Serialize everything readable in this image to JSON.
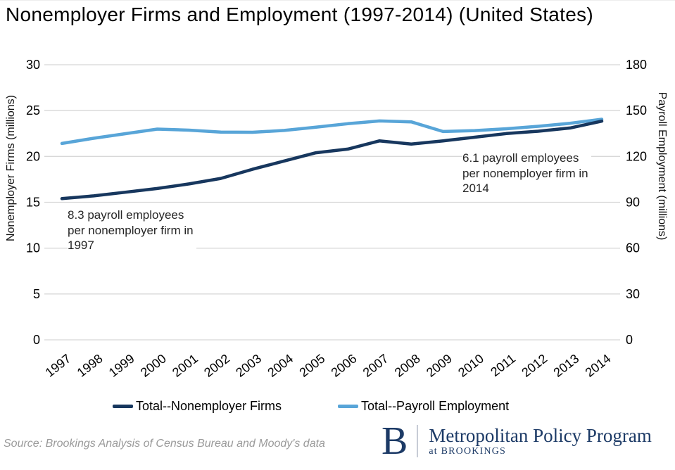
{
  "header": {
    "title": "Nonemployer Firms and Employment (1997-2014) (United States)"
  },
  "chart_data": {
    "type": "line",
    "title": "Nonemployer Firms and Employment (1997-2014) (United States)",
    "x": [
      "1997",
      "1998",
      "1999",
      "2000",
      "2001",
      "2002",
      "2003",
      "2004",
      "2005",
      "2006",
      "2007",
      "2008",
      "2009",
      "2010",
      "2011",
      "2012",
      "2013",
      "2014"
    ],
    "series": [
      {
        "name": "Total--Nonemployer Firms",
        "axis": "left",
        "color": "#17375e",
        "values": [
          15.4,
          15.7,
          16.1,
          16.5,
          17.0,
          17.6,
          18.6,
          19.5,
          20.4,
          20.8,
          21.7,
          21.35,
          21.7,
          22.1,
          22.5,
          22.75,
          23.1,
          23.85
        ]
      },
      {
        "name": "Total--Payroll Employment",
        "axis": "right",
        "color": "#58a5d8",
        "values": [
          128.5,
          131.9,
          134.9,
          137.9,
          137.2,
          135.9,
          135.8,
          137.0,
          139.1,
          141.4,
          143.2,
          142.6,
          136.3,
          136.9,
          138.1,
          139.7,
          141.7,
          144.3
        ]
      }
    ],
    "left_axis": {
      "label": "Nonemployer Firms (millions)",
      "ticks": [
        0,
        5,
        10,
        15,
        20,
        25,
        30
      ],
      "range": [
        0,
        30
      ]
    },
    "right_axis": {
      "label": "Payroll Employment (millions)",
      "ticks": [
        0,
        30,
        60,
        90,
        120,
        150,
        180
      ],
      "range": [
        0,
        180
      ]
    },
    "grid": "horizontal",
    "legend_position": "bottom",
    "gridline_color": "#d8d8d8",
    "annotations": [
      {
        "text": "8.3 payroll employees\nper nonemployer firm in\n1997"
      },
      {
        "text": "6.1 payroll employees\nper nonemployer firm in\n2014"
      }
    ]
  },
  "footer": {
    "source": "Source: Brookings Analysis of Census Bureau and Moody's data",
    "logo": {
      "letter": "B",
      "program": "Metropolitan Policy Program",
      "sub": "at BROOKINGS",
      "color": "#1c3a66"
    }
  }
}
